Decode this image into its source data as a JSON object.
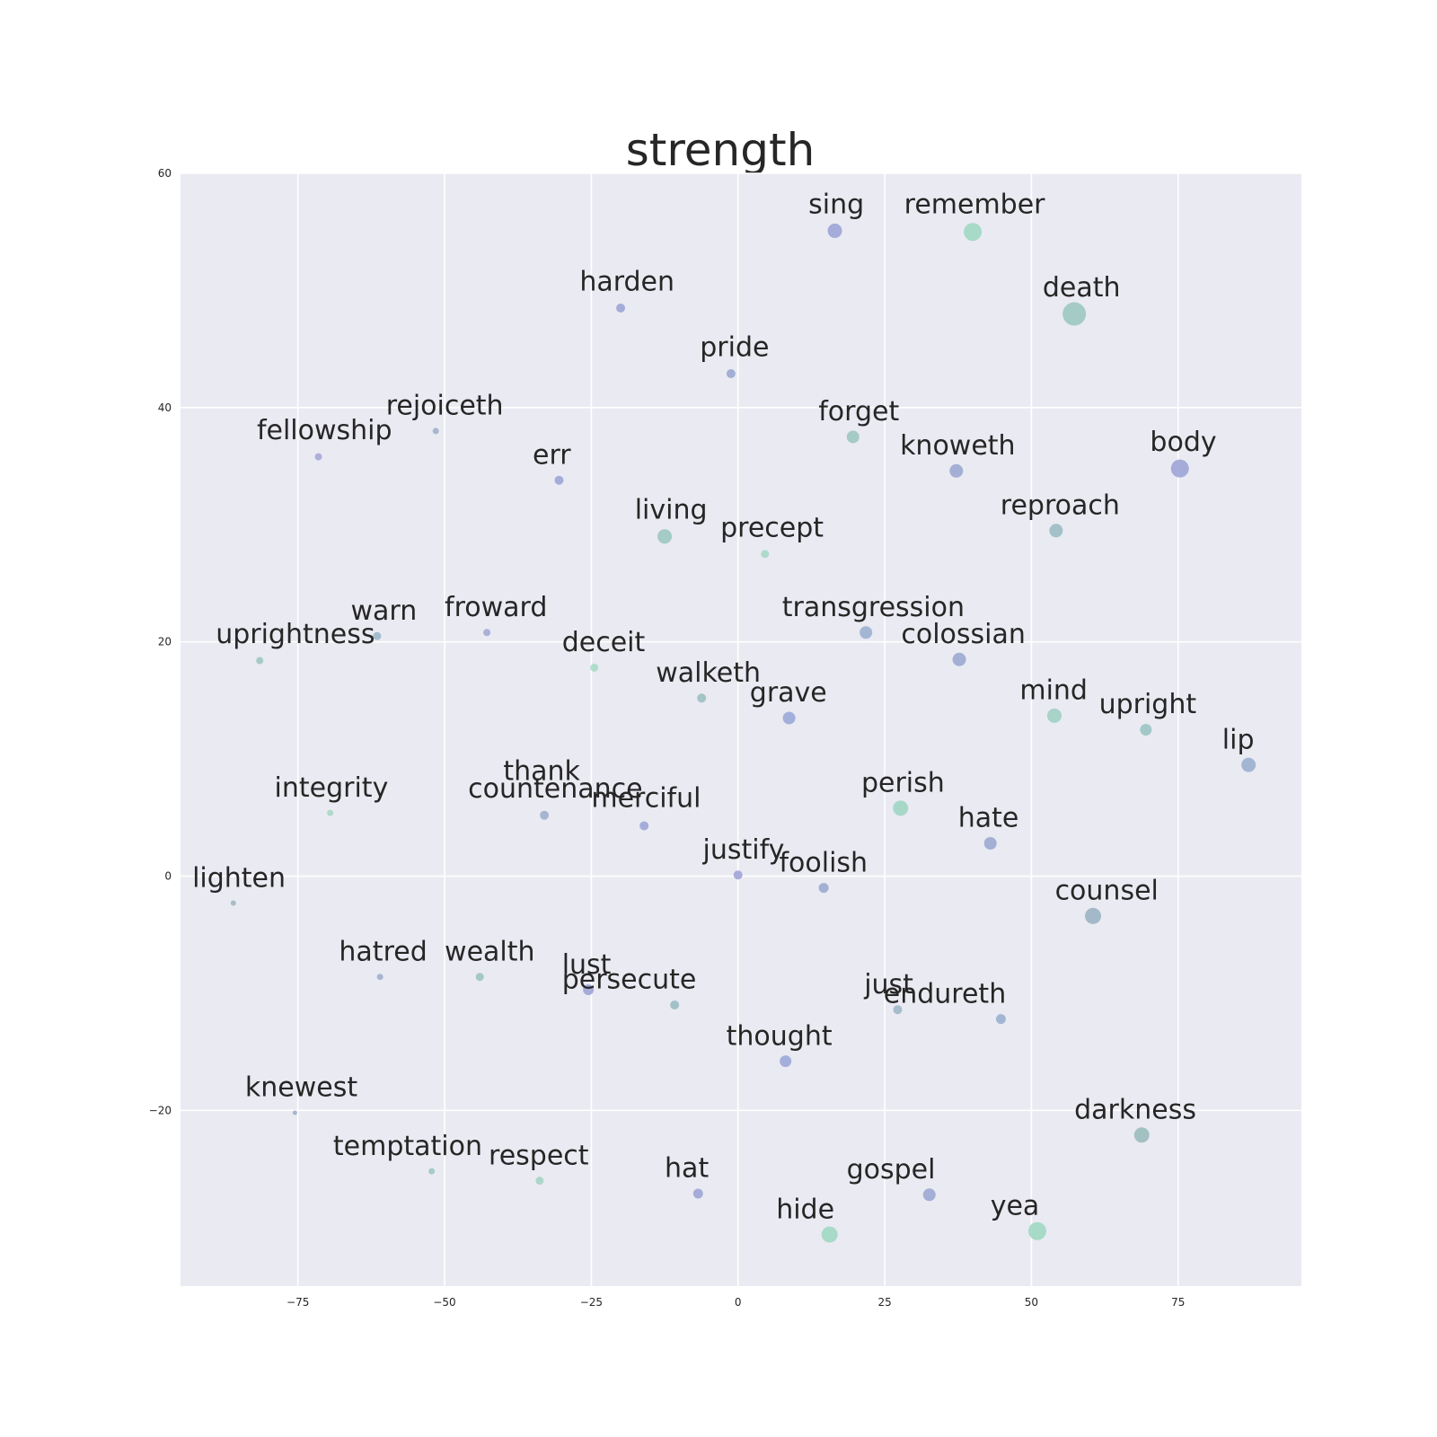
{
  "chart_data": {
    "type": "scatter",
    "title": "strength",
    "xlabel": "",
    "ylabel": "",
    "xlim": [
      -95,
      96
    ],
    "ylim": [
      -35,
      60
    ],
    "xticks": [
      -75,
      -50,
      -25,
      0,
      25,
      50,
      75
    ],
    "xtick_labels": [
      "−75",
      "−50",
      "−25",
      "0",
      "25",
      "50",
      "75"
    ],
    "yticks": [
      60,
      40,
      20,
      0,
      -20
    ],
    "ytick_labels": [
      "60",
      "40",
      "20",
      "0",
      "−20"
    ],
    "grid": true,
    "points": [
      {
        "label": "sing",
        "x": 16.5,
        "y": 55.1,
        "size": 8,
        "color": "#9da5d6"
      },
      {
        "label": "remember",
        "x": 40.0,
        "y": 55.0,
        "size": 10,
        "color": "#a0d8c2"
      },
      {
        "label": "harden",
        "x": -20.0,
        "y": 48.5,
        "size": 5,
        "color": "#9da5d6"
      },
      {
        "label": "death",
        "x": 57.3,
        "y": 48.0,
        "size": 13,
        "color": "#9cc8c2"
      },
      {
        "label": "pride",
        "x": -1.2,
        "y": 42.9,
        "size": 5,
        "color": "#9ba8d2"
      },
      {
        "label": "rejoiceth",
        "x": -51.5,
        "y": 38.0,
        "size": 3.5,
        "color": "#a0b0cc"
      },
      {
        "label": "forget",
        "x": 19.6,
        "y": 37.5,
        "size": 7,
        "color": "#9cc8c0"
      },
      {
        "label": "fellowship",
        "x": -71.5,
        "y": 35.8,
        "size": 4,
        "color": "#a6a8d8"
      },
      {
        "label": "knoweth",
        "x": 37.2,
        "y": 34.6,
        "size": 7.5,
        "color": "#9ca8d2"
      },
      {
        "label": "body",
        "x": 75.3,
        "y": 34.8,
        "size": 10,
        "color": "#9da5d6"
      },
      {
        "label": "err",
        "x": -30.5,
        "y": 33.8,
        "size": 5,
        "color": "#9da5d6"
      },
      {
        "label": "reproach",
        "x": 54.2,
        "y": 29.5,
        "size": 7.5,
        "color": "#9bbdc2"
      },
      {
        "label": "living",
        "x": -12.5,
        "y": 29.0,
        "size": 8,
        "color": "#9cc8bf"
      },
      {
        "label": "precept",
        "x": 4.6,
        "y": 27.5,
        "size": 4.5,
        "color": "#a6d8c4"
      },
      {
        "label": "transgression",
        "x": 21.8,
        "y": 20.8,
        "size": 7,
        "color": "#9cb0d0"
      },
      {
        "label": "warn",
        "x": -61.5,
        "y": 20.5,
        "size": 4.5,
        "color": "#9bb8c8"
      },
      {
        "label": "froward",
        "x": -42.8,
        "y": 20.8,
        "size": 4,
        "color": "#a4a8d6"
      },
      {
        "label": "uprightness",
        "x": -81.5,
        "y": 18.4,
        "size": 4,
        "color": "#9ec8c2"
      },
      {
        "label": "colossian",
        "x": 37.7,
        "y": 18.5,
        "size": 7.5,
        "color": "#9ba8d2"
      },
      {
        "label": "deceit",
        "x": -24.5,
        "y": 17.8,
        "size": 4.5,
        "color": "#a8dcc4"
      },
      {
        "label": "walketh",
        "x": -6.2,
        "y": 15.2,
        "size": 5,
        "color": "#9cc0c2"
      },
      {
        "label": "grave",
        "x": 8.7,
        "y": 13.5,
        "size": 7,
        "color": "#9ba8d8"
      },
      {
        "label": "mind",
        "x": 53.9,
        "y": 13.7,
        "size": 8,
        "color": "#a0d0c4"
      },
      {
        "label": "upright",
        "x": 69.5,
        "y": 12.5,
        "size": 6.5,
        "color": "#9bc4c4"
      },
      {
        "label": "lip",
        "x": 87.0,
        "y": 9.5,
        "size": 8,
        "color": "#9ab0d0"
      },
      {
        "label": "perish",
        "x": 27.7,
        "y": 5.8,
        "size": 8.5,
        "color": "#a0d6c2"
      },
      {
        "label": "integrity",
        "x": -69.5,
        "y": 5.4,
        "size": 3.5,
        "color": "#a8d8c4"
      },
      {
        "label": "thank",
        "x": -33.0,
        "y": 5.2,
        "size": 5,
        "color": "#a0b0cc"
      },
      {
        "label": "countenance",
        "x": -33.0,
        "y": 5.2,
        "size": 0,
        "color": "#a0b0cc"
      },
      {
        "label": "merciful",
        "x": -16.0,
        "y": 4.3,
        "size": 5,
        "color": "#9da5d6"
      },
      {
        "label": "hate",
        "x": 43.0,
        "y": 2.8,
        "size": 7,
        "color": "#9ba8d2"
      },
      {
        "label": "justify",
        "x": 0.0,
        "y": 0.1,
        "size": 5,
        "color": "#9da5d6"
      },
      {
        "label": "foolish",
        "x": 14.6,
        "y": -1.0,
        "size": 5.5,
        "color": "#9ba8d2"
      },
      {
        "label": "lighten",
        "x": -86.0,
        "y": -2.3,
        "size": 3,
        "color": "#a0b8c4"
      },
      {
        "label": "counsel",
        "x": 60.5,
        "y": -3.4,
        "size": 9,
        "color": "#9bb4c4"
      },
      {
        "label": "hatred",
        "x": -61.0,
        "y": -8.6,
        "size": 3.5,
        "color": "#a0b0cc"
      },
      {
        "label": "wealth",
        "x": -44.0,
        "y": -8.6,
        "size": 4.5,
        "color": "#9cc4c0"
      },
      {
        "label": "lust",
        "x": -25.5,
        "y": -9.7,
        "size": 6,
        "color": "#9da5d6"
      },
      {
        "label": "persecute",
        "x": -10.8,
        "y": -11.0,
        "size": 5,
        "color": "#9bbcc4"
      },
      {
        "label": "just",
        "x": 27.2,
        "y": -11.4,
        "size": 5,
        "color": "#a0b8c8"
      },
      {
        "label": "endureth",
        "x": 44.8,
        "y": -12.2,
        "size": 5.5,
        "color": "#9ab0d0"
      },
      {
        "label": "thought",
        "x": 8.1,
        "y": -15.8,
        "size": 6.5,
        "color": "#9ba8d8"
      },
      {
        "label": "knewest",
        "x": -75.5,
        "y": -20.2,
        "size": 2.5,
        "color": "#a0b0cc"
      },
      {
        "label": "darkness",
        "x": 68.8,
        "y": -22.1,
        "size": 8.5,
        "color": "#9bbcbc"
      },
      {
        "label": "temptation",
        "x": -52.2,
        "y": -25.2,
        "size": 3.5,
        "color": "#9ec8c4"
      },
      {
        "label": "respect",
        "x": -33.8,
        "y": -26.0,
        "size": 4.5,
        "color": "#a4d4c4"
      },
      {
        "label": "hat",
        "x": -6.8,
        "y": -27.1,
        "size": 5.5,
        "color": "#9da5d6"
      },
      {
        "label": "gospel",
        "x": 32.6,
        "y": -27.2,
        "size": 7,
        "color": "#9ba8d2"
      },
      {
        "label": "hide",
        "x": 15.6,
        "y": -30.6,
        "size": 9,
        "color": "#a0d8c2"
      },
      {
        "label": "yea",
        "x": 51.0,
        "y": -30.3,
        "size": 10,
        "color": "#a0d8c2"
      }
    ],
    "labels": [
      {
        "text": "sing",
        "x": 12.0,
        "y": 56.6
      },
      {
        "text": "remember",
        "x": 28.3,
        "y": 56.6
      },
      {
        "text": "harden",
        "x": -27.0,
        "y": 50.0
      },
      {
        "text": "death",
        "x": 51.9,
        "y": 49.5
      },
      {
        "text": "pride",
        "x": -6.5,
        "y": 44.4
      },
      {
        "text": "rejoiceth",
        "x": -60.0,
        "y": 39.4
      },
      {
        "text": "forget",
        "x": 13.7,
        "y": 38.9
      },
      {
        "text": "fellowship",
        "x": -82.0,
        "y": 37.3
      },
      {
        "text": "knoweth",
        "x": 27.6,
        "y": 36.0
      },
      {
        "text": "body",
        "x": 70.2,
        "y": 36.3
      },
      {
        "text": "err",
        "x": -35.0,
        "y": 35.2
      },
      {
        "text": "reproach",
        "x": 44.7,
        "y": 30.9
      },
      {
        "text": "living",
        "x": -17.6,
        "y": 30.5
      },
      {
        "text": "precept",
        "x": -3.0,
        "y": 29.0
      },
      {
        "text": "transgression",
        "x": 7.5,
        "y": 22.2
      },
      {
        "text": "warn",
        "x": -66.0,
        "y": 21.9
      },
      {
        "text": "froward",
        "x": -50.0,
        "y": 22.2
      },
      {
        "text": "uprightness",
        "x": -89.0,
        "y": 19.9
      },
      {
        "text": "colossian",
        "x": 27.8,
        "y": 19.9
      },
      {
        "text": "deceit",
        "x": -30.0,
        "y": 19.2
      },
      {
        "text": "walketh",
        "x": -14.0,
        "y": 16.6
      },
      {
        "text": "grave",
        "x": 2.0,
        "y": 14.9
      },
      {
        "text": "mind",
        "x": 48.0,
        "y": 15.1
      },
      {
        "text": "upright",
        "x": 61.5,
        "y": 13.9
      },
      {
        "text": "lip",
        "x": 82.5,
        "y": 10.9
      },
      {
        "text": "perish",
        "x": 21.0,
        "y": 7.2
      },
      {
        "text": "integrity",
        "x": -79.0,
        "y": 6.8
      },
      {
        "text": "thank",
        "x": -40.0,
        "y": 8.2
      },
      {
        "text": "countenance",
        "x": -46.0,
        "y": 6.7
      },
      {
        "text": "merciful",
        "x": -25.0,
        "y": 5.9
      },
      {
        "text": "hate",
        "x": 37.5,
        "y": 4.2
      },
      {
        "text": "justify",
        "x": -6.0,
        "y": 1.5
      },
      {
        "text": "foolish",
        "x": 7.0,
        "y": 0.4
      },
      {
        "text": "lighten",
        "x": -93.0,
        "y": -0.9
      },
      {
        "text": "counsel",
        "x": 54.0,
        "y": -2.0
      },
      {
        "text": "hatred",
        "x": -68.0,
        "y": -7.2
      },
      {
        "text": "wealth",
        "x": -50.0,
        "y": -7.2
      },
      {
        "text": "lust",
        "x": -30.0,
        "y": -8.3
      },
      {
        "text": "persecute",
        "x": -30.0,
        "y": -9.6
      },
      {
        "text": "just",
        "x": 21.5,
        "y": -10.0
      },
      {
        "text": "endureth",
        "x": 24.8,
        "y": -10.8
      },
      {
        "text": "thought",
        "x": -2.0,
        "y": -14.4
      },
      {
        "text": "knewest",
        "x": -84.0,
        "y": -18.8
      },
      {
        "text": "darkness",
        "x": 57.3,
        "y": -20.7
      },
      {
        "text": "temptation",
        "x": -69.0,
        "y": -23.8
      },
      {
        "text": "respect",
        "x": -42.5,
        "y": -24.6
      },
      {
        "text": "hat",
        "x": -12.5,
        "y": -25.7
      },
      {
        "text": "gospel",
        "x": 18.5,
        "y": -25.8
      },
      {
        "text": "hide",
        "x": 6.5,
        "y": -29.2
      },
      {
        "text": "yea",
        "x": 43.0,
        "y": -28.9
      }
    ],
    "colors": {
      "plot_background": "#eaeaf2",
      "grid": "#ffffff",
      "text": "#262626"
    }
  }
}
